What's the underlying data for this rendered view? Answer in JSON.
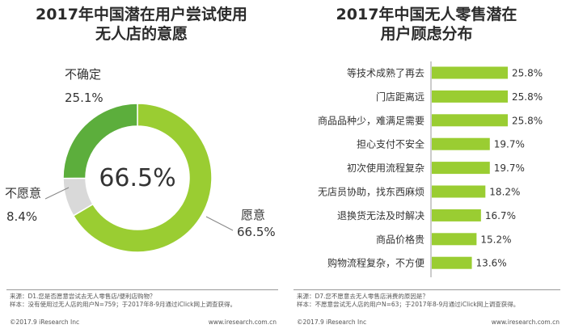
{
  "left": {
    "title_line1": "2017年中国潜在用户尝试使用",
    "title_line2": "无人店的意愿",
    "center_value": "66.5%",
    "chart_data": {
      "type": "pie",
      "series": [
        {
          "name": "愿意",
          "value": 66.5,
          "label": "66.5%",
          "color": "#9acd32"
        },
        {
          "name": "不愿意",
          "value": 8.4,
          "label": "8.4%",
          "color": "#d9d9d9"
        },
        {
          "name": "不确定",
          "value": 25.1,
          "label": "25.1%",
          "color": "#5cae3c"
        }
      ]
    },
    "source": "来源：D1.您是否愿意尝试去无人零售店/便利店购物？",
    "sample": "样本：没有使用过无人店的用户N=759；于2017年8-9月通过iClick网上调查获得。",
    "copyright": "©2017.9 iResearch Inc",
    "website": "www.iresearch.com.cn"
  },
  "right": {
    "title_line1": "2017年中国无人零售潜在",
    "title_line2": "用户顾虑分布",
    "chart_data": {
      "type": "bar",
      "orientation": "horizontal",
      "categories": [
        "等技术成熟了再去",
        "门店距离远",
        "商品品种少，难满足需要",
        "担心支付不安全",
        "初次使用流程复杂",
        "无店员协助，找东西麻烦",
        "退换货无法及时解决",
        "商品价格贵",
        "购物流程复杂，不方便"
      ],
      "values": [
        25.8,
        25.8,
        25.8,
        19.7,
        19.7,
        18.2,
        16.7,
        15.2,
        13.6
      ],
      "value_labels": [
        "25.8%",
        "25.8%",
        "25.8%",
        "19.7%",
        "19.7%",
        "18.2%",
        "16.7%",
        "15.2%",
        "13.6%"
      ],
      "bar_color": "#9acd32"
    },
    "source": "来源：D7.您不愿意去无人零售店消费的原因是？",
    "sample": "样本：不愿意尝试无人店的用户N=63；于2017年8-9月通过iClick网上调查获得。",
    "copyright": "©2017.9 iResearch Inc",
    "website": "www.iresearch.com.cn"
  }
}
